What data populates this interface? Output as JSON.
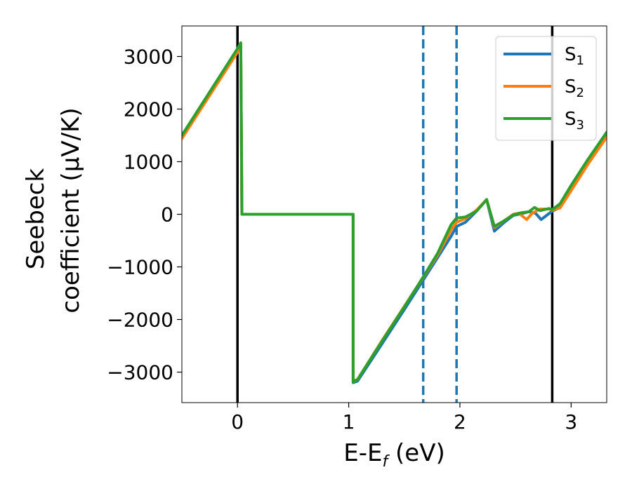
{
  "chart_data": {
    "type": "line",
    "xlabel": "E-E",
    "xlabel_sub": "f",
    "xlabel_unit": " (eV)",
    "ylabel_line1": "Seebeck",
    "ylabel_line2": "coefficient  (μV/K)",
    "xlim": [
      -0.5,
      3.32
    ],
    "ylim": [
      -3580,
      3580
    ],
    "x_ticks": [
      {
        "value": 0,
        "label": "0"
      },
      {
        "value": 1,
        "label": "1"
      },
      {
        "value": 2,
        "label": "2"
      },
      {
        "value": 3,
        "label": "3"
      }
    ],
    "y_ticks": [
      {
        "value": 3000,
        "label": "3000"
      },
      {
        "value": 2000,
        "label": "2000"
      },
      {
        "value": 1000,
        "label": "1000"
      },
      {
        "value": 0,
        "label": "0"
      },
      {
        "value": -1000,
        "label": "−1000"
      },
      {
        "value": -2000,
        "label": "−2000"
      },
      {
        "value": -3000,
        "label": "−3000"
      }
    ],
    "legend_position": "top-right",
    "vertical_lines": [
      {
        "x": 0.0,
        "style": "solid",
        "color": "#000000"
      },
      {
        "x": 2.83,
        "style": "solid",
        "color": "#000000"
      },
      {
        "x": 1.67,
        "style": "dashed",
        "color": "#1f77b4"
      },
      {
        "x": 1.97,
        "style": "dashed",
        "color": "#1f77b4"
      }
    ],
    "series": [
      {
        "name": "S",
        "sub": "1",
        "color": "#1f77b4",
        "points": [
          [
            -0.5,
            1490
          ],
          [
            0.0,
            3110
          ],
          [
            0.01,
            3150
          ],
          [
            0.02,
            3180
          ],
          [
            0.03,
            3200
          ],
          [
            0.04,
            0
          ],
          [
            1.04,
            0
          ],
          [
            1.04,
            -3200
          ],
          [
            1.08,
            -3170
          ],
          [
            1.3,
            -2460
          ],
          [
            1.5,
            -1810
          ],
          [
            1.67,
            -1250
          ],
          [
            1.8,
            -820
          ],
          [
            1.92,
            -420
          ],
          [
            1.97,
            -230
          ],
          [
            2.05,
            -150
          ],
          [
            2.15,
            60
          ],
          [
            2.24,
            280
          ],
          [
            2.31,
            -320
          ],
          [
            2.4,
            -150
          ],
          [
            2.48,
            -20
          ],
          [
            2.55,
            10
          ],
          [
            2.62,
            50
          ],
          [
            2.68,
            20
          ],
          [
            2.73,
            -100
          ],
          [
            2.78,
            -20
          ],
          [
            2.83,
            60
          ],
          [
            2.9,
            130
          ],
          [
            3.0,
            500
          ],
          [
            3.15,
            990
          ],
          [
            3.32,
            1500
          ]
        ]
      },
      {
        "name": "S",
        "sub": "2",
        "color": "#ff7f0e",
        "points": [
          [
            -0.5,
            1440
          ],
          [
            0.0,
            3080
          ],
          [
            0.01,
            3120
          ],
          [
            0.02,
            3160
          ],
          [
            0.03,
            3190
          ],
          [
            0.04,
            0
          ],
          [
            1.04,
            0
          ],
          [
            1.04,
            -3170
          ],
          [
            1.08,
            -3140
          ],
          [
            1.3,
            -2400
          ],
          [
            1.5,
            -1750
          ],
          [
            1.67,
            -1200
          ],
          [
            1.8,
            -770
          ],
          [
            1.92,
            -300
          ],
          [
            1.97,
            -150
          ],
          [
            2.05,
            -80
          ],
          [
            2.15,
            80
          ],
          [
            2.24,
            280
          ],
          [
            2.31,
            -250
          ],
          [
            2.4,
            -120
          ],
          [
            2.48,
            0
          ],
          [
            2.53,
            20
          ],
          [
            2.6,
            -100
          ],
          [
            2.65,
            20
          ],
          [
            2.72,
            100
          ],
          [
            2.8,
            100
          ],
          [
            2.83,
            80
          ],
          [
            2.9,
            120
          ],
          [
            3.0,
            450
          ],
          [
            3.15,
            950
          ],
          [
            3.32,
            1470
          ]
        ]
      },
      {
        "name": "S",
        "sub": "3",
        "color": "#2ca02c",
        "points": [
          [
            -0.5,
            1500
          ],
          [
            0.0,
            3150
          ],
          [
            0.01,
            3190
          ],
          [
            0.02,
            3230
          ],
          [
            0.03,
            3260
          ],
          [
            0.04,
            0
          ],
          [
            1.04,
            0
          ],
          [
            1.04,
            -3190
          ],
          [
            1.08,
            -3140
          ],
          [
            1.3,
            -2410
          ],
          [
            1.5,
            -1760
          ],
          [
            1.67,
            -1190
          ],
          [
            1.8,
            -740
          ],
          [
            1.92,
            -200
          ],
          [
            1.97,
            -70
          ],
          [
            2.05,
            -50
          ],
          [
            2.15,
            60
          ],
          [
            2.24,
            280
          ],
          [
            2.31,
            -230
          ],
          [
            2.4,
            -120
          ],
          [
            2.48,
            -10
          ],
          [
            2.55,
            30
          ],
          [
            2.62,
            50
          ],
          [
            2.67,
            130
          ],
          [
            2.72,
            70
          ],
          [
            2.8,
            110
          ],
          [
            2.83,
            90
          ],
          [
            2.9,
            200
          ],
          [
            3.0,
            550
          ],
          [
            3.15,
            1040
          ],
          [
            3.32,
            1560
          ]
        ]
      }
    ]
  }
}
